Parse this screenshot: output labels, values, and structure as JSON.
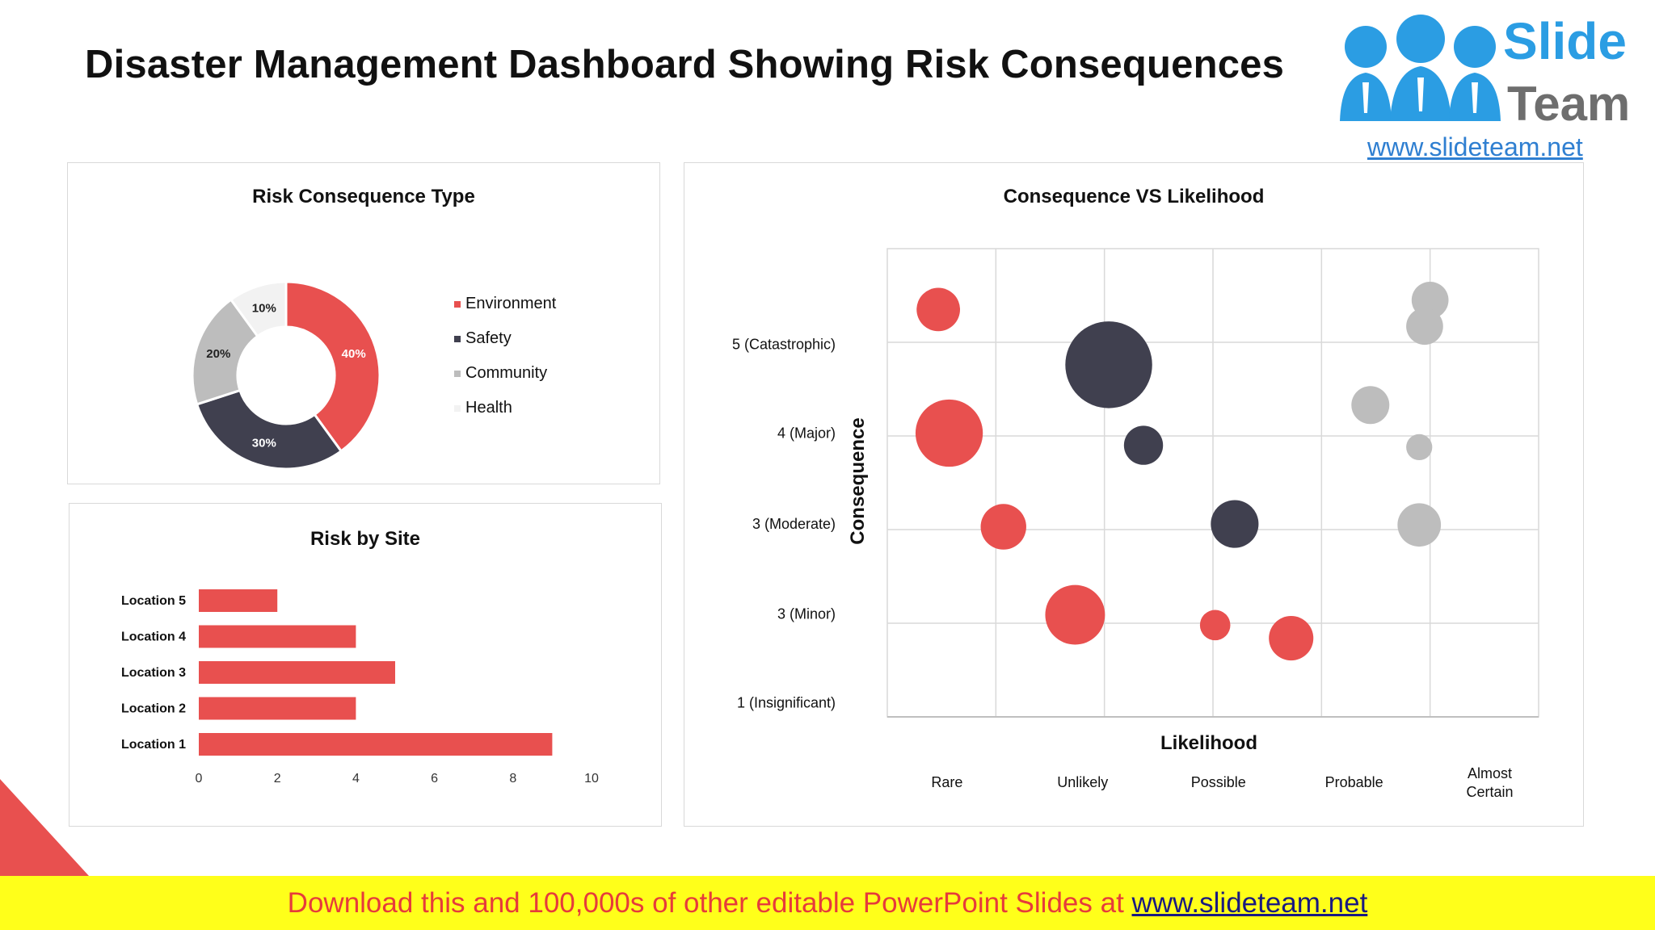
{
  "page": {
    "title": "Disaster Management Dashboard Showing Risk Consequences"
  },
  "logo": {
    "line1": "Slide",
    "line2": "Team",
    "url": "www.slideteam.net"
  },
  "banner": {
    "text": "Download this and 100,000s of other editable PowerPoint Slides at ",
    "link": "www.slideteam.net"
  },
  "colors": {
    "red": "#e8504f",
    "dark": "#40404f",
    "grey": "#bdbdbd",
    "light": "#f2f2f2"
  },
  "chart_data": [
    {
      "type": "pie",
      "title": "Risk Consequence Type",
      "donut": true,
      "slices": [
        {
          "label": "Environment",
          "value": 40,
          "display": "40%",
          "color": "#e8504f"
        },
        {
          "label": "Safety",
          "value": 30,
          "display": "30%",
          "color": "#40404f"
        },
        {
          "label": "Community",
          "value": 20,
          "display": "20%",
          "color": "#bdbdbd"
        },
        {
          "label": "Health",
          "value": 10,
          "display": "10%",
          "color": "#f2f2f2"
        }
      ],
      "legend": "right"
    },
    {
      "type": "bar",
      "orientation": "horizontal",
      "title": "Risk by Site",
      "categories": [
        "Location 1",
        "Location 2",
        "Location 3",
        "Location 4",
        "Location 5"
      ],
      "values": [
        9,
        4,
        5,
        4,
        2
      ],
      "xlim": [
        0,
        10
      ],
      "xticks": [
        "0",
        "2",
        "4",
        "6",
        "8",
        "10"
      ],
      "color": "#e8504f"
    },
    {
      "type": "scatter",
      "subtype": "bubble",
      "title": "Consequence VS Likelihood",
      "xlabel": "Likelihood",
      "ylabel": "Consequence",
      "xlim": [
        0,
        6
      ],
      "ylim": [
        0,
        5
      ],
      "x_categories": [
        "Rare",
        "Unlikely",
        "Possible",
        "Probable",
        "Almost Certain"
      ],
      "y_categories": [
        "1 (Insignificant)",
        "3 (Minor)",
        "3 (Moderate)",
        "4 (Major)",
        "5 (Catastrophic)"
      ],
      "series": [
        {
          "name": "Environment",
          "color": "#e8504f",
          "points": [
            {
              "x": 0.47,
              "y": 4.35,
              "size": 0.4
            },
            {
              "x": 0.57,
              "y": 3.03,
              "size": 0.62
            },
            {
              "x": 1.07,
              "y": 2.03,
              "size": 0.42
            },
            {
              "x": 1.73,
              "y": 1.09,
              "size": 0.55
            },
            {
              "x": 3.02,
              "y": 0.98,
              "size": 0.28
            },
            {
              "x": 3.72,
              "y": 0.84,
              "size": 0.41
            }
          ]
        },
        {
          "name": "Safety",
          "color": "#40404f",
          "points": [
            {
              "x": 2.04,
              "y": 3.76,
              "size": 0.8
            },
            {
              "x": 2.36,
              "y": 2.9,
              "size": 0.36
            },
            {
              "x": 3.2,
              "y": 2.06,
              "size": 0.44
            }
          ]
        },
        {
          "name": "Community",
          "color": "#bdbdbd",
          "points": [
            {
              "x": 5.0,
              "y": 4.45,
              "size": 0.34
            },
            {
              "x": 4.95,
              "y": 4.17,
              "size": 0.34
            },
            {
              "x": 4.45,
              "y": 3.33,
              "size": 0.35
            },
            {
              "x": 4.9,
              "y": 2.88,
              "size": 0.24
            },
            {
              "x": 4.9,
              "y": 2.05,
              "size": 0.4
            }
          ]
        }
      ]
    }
  ]
}
